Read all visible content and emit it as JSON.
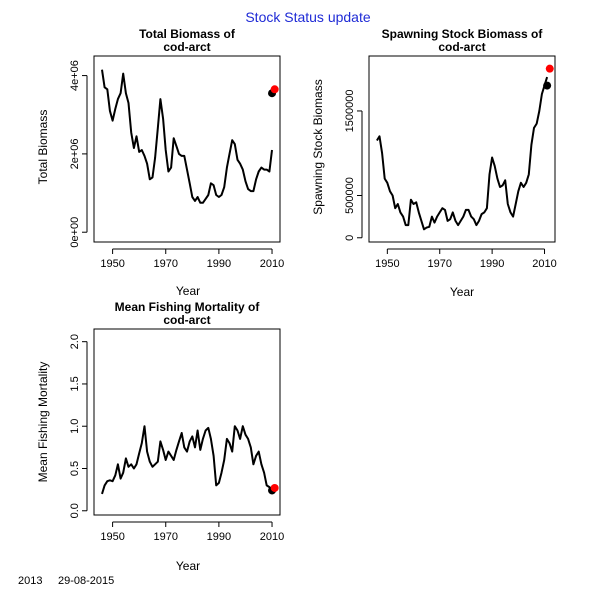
{
  "page": {
    "title": "Stock Status update",
    "footer_year": "2013",
    "footer_date": "29-08-2015"
  },
  "chart_data": [
    {
      "type": "line",
      "title_line1": "Total Biomass of",
      "title_line2": "cod-arct",
      "xlabel": "Year",
      "ylabel": "Total Biomass",
      "xlim": [
        1943,
        2013
      ],
      "ylim": [
        -250000,
        4500000
      ],
      "xticks": [
        1950,
        1970,
        1990,
        2010
      ],
      "yticks": [
        0,
        2000000,
        4000000
      ],
      "ytick_labels": [
        "0e+00",
        "2e+06",
        "4e+06"
      ],
      "x": [
        1946,
        1947,
        1948,
        1949,
        1950,
        1951,
        1952,
        1953,
        1954,
        1955,
        1956,
        1957,
        1958,
        1959,
        1960,
        1961,
        1962,
        1963,
        1964,
        1965,
        1966,
        1967,
        1968,
        1969,
        1970,
        1971,
        1972,
        1973,
        1974,
        1975,
        1976,
        1977,
        1978,
        1979,
        1980,
        1981,
        1982,
        1983,
        1984,
        1985,
        1986,
        1987,
        1988,
        1989,
        1990,
        1991,
        1992,
        1993,
        1994,
        1995,
        1996,
        1997,
        1998,
        1999,
        2000,
        2001,
        2002,
        2003,
        2004,
        2005,
        2006,
        2007,
        2008,
        2009,
        2010
      ],
      "y": [
        4150000,
        3700000,
        3650000,
        3100000,
        2850000,
        3150000,
        3400000,
        3550000,
        4050000,
        3550000,
        3300000,
        2550000,
        2150000,
        2450000,
        2050000,
        2100000,
        1950000,
        1750000,
        1350000,
        1400000,
        1900000,
        2650000,
        3400000,
        2900000,
        2100000,
        1550000,
        1650000,
        2400000,
        2200000,
        2000000,
        1950000,
        1950000,
        1600000,
        1250000,
        900000,
        800000,
        900000,
        750000,
        750000,
        850000,
        950000,
        1250000,
        1200000,
        950000,
        900000,
        950000,
        1150000,
        1650000,
        2000000,
        2350000,
        2250000,
        1850000,
        1750000,
        1600000,
        1300000,
        1100000,
        1050000,
        1050000,
        1350000,
        1550000,
        1650000,
        1600000,
        1600000,
        1550000,
        2100000
      ],
      "highlights": [
        {
          "x": 2010,
          "y": 3550000,
          "color": "#000000"
        },
        {
          "x": 2011,
          "y": 3650000,
          "color": "#ff0000"
        }
      ]
    },
    {
      "type": "line",
      "title_line1": "Spawning Stock Biomass of",
      "title_line2": "cod-arct",
      "xlabel": "Year",
      "ylabel": "Spawning Stock Biomass",
      "xlim": [
        1943,
        2014
      ],
      "ylim": [
        -50000,
        2150000
      ],
      "xticks": [
        1950,
        1970,
        1990,
        2010
      ],
      "yticks": [
        0,
        500000,
        1500000
      ],
      "ytick_labels": [
        "0",
        "500000",
        "1500000"
      ],
      "x": [
        1946,
        1947,
        1948,
        1949,
        1950,
        1951,
        1952,
        1953,
        1954,
        1955,
        1956,
        1957,
        1958,
        1959,
        1960,
        1961,
        1962,
        1963,
        1964,
        1965,
        1966,
        1967,
        1968,
        1969,
        1970,
        1971,
        1972,
        1973,
        1974,
        1975,
        1976,
        1977,
        1978,
        1979,
        1980,
        1981,
        1982,
        1983,
        1984,
        1985,
        1986,
        1987,
        1988,
        1989,
        1990,
        1991,
        1992,
        1993,
        1994,
        1995,
        1996,
        1997,
        1998,
        1999,
        2000,
        2001,
        2002,
        2003,
        2004,
        2005,
        2006,
        2007,
        2008,
        2009,
        2010,
        2011
      ],
      "y": [
        1150000,
        1200000,
        1000000,
        700000,
        650000,
        550000,
        500000,
        350000,
        400000,
        300000,
        250000,
        150000,
        150000,
        450000,
        400000,
        420000,
        300000,
        200000,
        100000,
        120000,
        130000,
        250000,
        180000,
        250000,
        300000,
        350000,
        330000,
        200000,
        220000,
        300000,
        200000,
        150000,
        200000,
        250000,
        330000,
        330000,
        250000,
        220000,
        150000,
        200000,
        280000,
        300000,
        350000,
        750000,
        950000,
        850000,
        700000,
        600000,
        620000,
        680000,
        400000,
        300000,
        250000,
        400000,
        550000,
        650000,
        600000,
        650000,
        750000,
        1100000,
        1300000,
        1350000,
        1500000,
        1700000,
        1800000,
        1900000
      ],
      "highlights": [
        {
          "x": 2011,
          "y": 1800000,
          "color": "#000000"
        },
        {
          "x": 2012,
          "y": 2000000,
          "color": "#ff0000"
        }
      ]
    },
    {
      "type": "line",
      "title_line1": "Mean Fishing Mortality of",
      "title_line2": "cod-arct",
      "xlabel": "Year",
      "ylabel": "Mean Fishing Mortality",
      "xlim": [
        1943,
        2013
      ],
      "ylim": [
        -0.05,
        2.15
      ],
      "xticks": [
        1950,
        1970,
        1990,
        2010
      ],
      "yticks": [
        0.0,
        0.5,
        1.0,
        1.5,
        2.0
      ],
      "ytick_labels": [
        "0.0",
        "0.5",
        "1.0",
        "1.5",
        "2.0"
      ],
      "x": [
        1946,
        1947,
        1948,
        1949,
        1950,
        1951,
        1952,
        1953,
        1954,
        1955,
        1956,
        1957,
        1958,
        1959,
        1960,
        1961,
        1962,
        1963,
        1964,
        1965,
        1966,
        1967,
        1968,
        1969,
        1970,
        1971,
        1972,
        1973,
        1974,
        1975,
        1976,
        1977,
        1978,
        1979,
        1980,
        1981,
        1982,
        1983,
        1984,
        1985,
        1986,
        1987,
        1988,
        1989,
        1990,
        1991,
        1992,
        1993,
        1994,
        1995,
        1996,
        1997,
        1998,
        1999,
        2000,
        2001,
        2002,
        2003,
        2004,
        2005,
        2006,
        2007,
        2008,
        2009,
        2010
      ],
      "y": [
        0.2,
        0.3,
        0.35,
        0.36,
        0.35,
        0.42,
        0.55,
        0.38,
        0.45,
        0.62,
        0.52,
        0.55,
        0.5,
        0.55,
        0.68,
        0.8,
        1.0,
        0.7,
        0.58,
        0.52,
        0.55,
        0.58,
        0.82,
        0.72,
        0.6,
        0.7,
        0.65,
        0.6,
        0.72,
        0.82,
        0.92,
        0.75,
        0.7,
        0.82,
        0.88,
        0.75,
        0.95,
        0.72,
        0.85,
        0.95,
        0.98,
        0.85,
        0.65,
        0.3,
        0.33,
        0.45,
        0.6,
        0.85,
        0.8,
        0.7,
        1.0,
        0.95,
        0.85,
        1.0,
        0.9,
        0.85,
        0.75,
        0.55,
        0.65,
        0.7,
        0.55,
        0.45,
        0.3,
        0.28,
        0.22
      ],
      "highlights": [
        {
          "x": 2010,
          "y": 0.24,
          "color": "#000000"
        },
        {
          "x": 2011,
          "y": 0.27,
          "color": "#ff0000"
        }
      ]
    }
  ]
}
